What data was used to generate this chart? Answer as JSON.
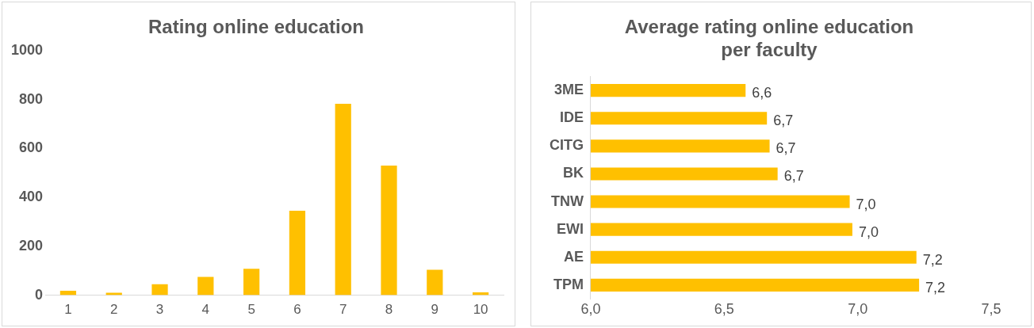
{
  "chart_data": [
    {
      "type": "bar",
      "title": "Rating online education",
      "categories": [
        "1",
        "2",
        "3",
        "4",
        "5",
        "6",
        "7",
        "8",
        "9",
        "10"
      ],
      "values": [
        18,
        10,
        45,
        75,
        108,
        345,
        782,
        530,
        104,
        12
      ],
      "color": "#ffc000",
      "ylim": [
        0,
        1000
      ],
      "yticks": [
        0,
        200,
        400,
        600,
        800,
        1000
      ]
    },
    {
      "type": "bar",
      "orientation": "horizontal",
      "title": "Average rating online education\nper faculty",
      "categories": [
        "3ME",
        "IDE",
        "CITG",
        "BK",
        "TNW",
        "EWI",
        "AE",
        "TPM"
      ],
      "values": [
        6.58,
        6.66,
        6.67,
        6.7,
        6.97,
        6.98,
        7.22,
        7.23
      ],
      "value_labels": [
        "6,6",
        "6,7",
        "6,7",
        "6,7",
        "7,0",
        "7,0",
        "7,2",
        "7,2"
      ],
      "color": "#ffc000",
      "xlim": [
        6,
        7.5
      ],
      "xticks": [
        {
          "value": 6,
          "label": "6,0"
        },
        {
          "value": 6.5,
          "label": "6,5"
        },
        {
          "value": 7,
          "label": "7,0"
        },
        {
          "value": 7.5,
          "label": "7,5"
        }
      ]
    }
  ]
}
